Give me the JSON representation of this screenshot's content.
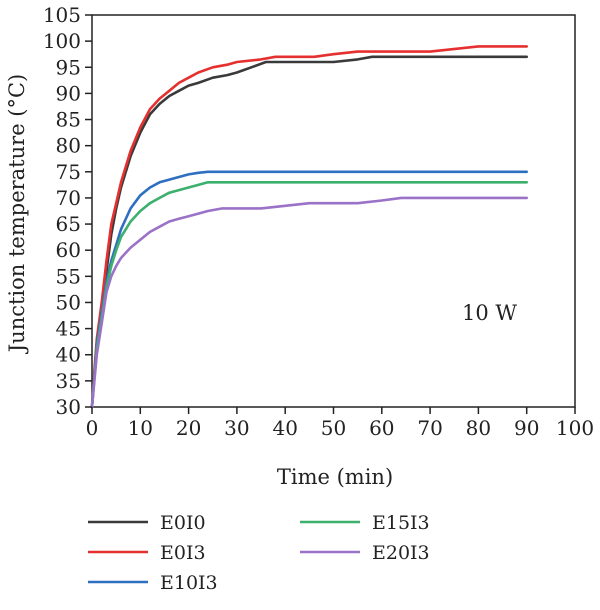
{
  "chart_data": {
    "type": "line",
    "xlabel": "Time (min)",
    "ylabel": "Junction temperature (°C)",
    "xlim": [
      0,
      100
    ],
    "ylim": [
      30,
      105
    ],
    "xticks": [
      0,
      10,
      20,
      30,
      40,
      50,
      60,
      70,
      80,
      90,
      100
    ],
    "yticks": [
      30,
      35,
      40,
      45,
      50,
      55,
      60,
      65,
      70,
      75,
      80,
      85,
      90,
      95,
      100,
      105
    ],
    "grid": false,
    "legend_position": "bottom",
    "annotation": "10 W",
    "series": [
      {
        "name": "E0I0",
        "color": "#3a3a3a",
        "points": [
          [
            0,
            30
          ],
          [
            0.5,
            36
          ],
          [
            1,
            42
          ],
          [
            2,
            48
          ],
          [
            3,
            56
          ],
          [
            4,
            63
          ],
          [
            5,
            68
          ],
          [
            6,
            72
          ],
          [
            8,
            78
          ],
          [
            10,
            82.5
          ],
          [
            12,
            86
          ],
          [
            14,
            88
          ],
          [
            16,
            89.5
          ],
          [
            18,
            90.5
          ],
          [
            20,
            91.5
          ],
          [
            22,
            92
          ],
          [
            25,
            93
          ],
          [
            28,
            93.5
          ],
          [
            30,
            94
          ],
          [
            33,
            95
          ],
          [
            36,
            96
          ],
          [
            40,
            96
          ],
          [
            45,
            96
          ],
          [
            50,
            96
          ],
          [
            55,
            96.5
          ],
          [
            58,
            97
          ],
          [
            65,
            97
          ],
          [
            90,
            97
          ]
        ]
      },
      {
        "name": "E0I3",
        "color": "#e53030",
        "points": [
          [
            0,
            30
          ],
          [
            0.5,
            37
          ],
          [
            1,
            43
          ],
          [
            2,
            50
          ],
          [
            3,
            58
          ],
          [
            4,
            65
          ],
          [
            5,
            69
          ],
          [
            6,
            73
          ],
          [
            8,
            79
          ],
          [
            10,
            83.5
          ],
          [
            12,
            87
          ],
          [
            14,
            89
          ],
          [
            16,
            90.5
          ],
          [
            18,
            92
          ],
          [
            20,
            93
          ],
          [
            22,
            94
          ],
          [
            25,
            95
          ],
          [
            28,
            95.5
          ],
          [
            30,
            96
          ],
          [
            35,
            96.5
          ],
          [
            38,
            97
          ],
          [
            46,
            97
          ],
          [
            50,
            97.5
          ],
          [
            55,
            98
          ],
          [
            70,
            98
          ],
          [
            80,
            99
          ],
          [
            90,
            99
          ]
        ]
      },
      {
        "name": "E10I3",
        "color": "#2f6fc0",
        "points": [
          [
            0,
            30
          ],
          [
            0.5,
            36
          ],
          [
            1,
            42
          ],
          [
            2,
            48
          ],
          [
            3,
            54
          ],
          [
            4,
            58
          ],
          [
            5,
            61
          ],
          [
            6,
            64
          ],
          [
            8,
            68
          ],
          [
            10,
            70.5
          ],
          [
            12,
            72
          ],
          [
            14,
            73
          ],
          [
            16,
            73.5
          ],
          [
            18,
            74
          ],
          [
            20,
            74.5
          ],
          [
            22,
            74.8
          ],
          [
            24,
            75
          ],
          [
            90,
            75
          ]
        ]
      },
      {
        "name": "E15I3",
        "color": "#3cb06c",
        "points": [
          [
            0,
            30
          ],
          [
            0.5,
            35.5
          ],
          [
            1,
            41
          ],
          [
            2,
            47
          ],
          [
            3,
            53
          ],
          [
            4,
            57
          ],
          [
            5,
            60
          ],
          [
            6,
            62.5
          ],
          [
            8,
            65.5
          ],
          [
            10,
            67.5
          ],
          [
            12,
            69
          ],
          [
            14,
            70
          ],
          [
            16,
            71
          ],
          [
            18,
            71.5
          ],
          [
            20,
            72
          ],
          [
            22,
            72.5
          ],
          [
            24,
            73
          ],
          [
            90,
            73
          ]
        ]
      },
      {
        "name": "E20I3",
        "color": "#9a72c8",
        "points": [
          [
            0,
            30
          ],
          [
            0.5,
            35
          ],
          [
            1,
            40
          ],
          [
            2,
            46
          ],
          [
            3,
            52
          ],
          [
            4,
            55
          ],
          [
            5,
            57
          ],
          [
            6,
            58.5
          ],
          [
            8,
            60.5
          ],
          [
            10,
            62
          ],
          [
            12,
            63.5
          ],
          [
            14,
            64.5
          ],
          [
            16,
            65.5
          ],
          [
            18,
            66
          ],
          [
            20,
            66.5
          ],
          [
            22,
            67
          ],
          [
            24,
            67.5
          ],
          [
            27,
            68
          ],
          [
            30,
            68
          ],
          [
            35,
            68
          ],
          [
            40,
            68.5
          ],
          [
            45,
            69
          ],
          [
            50,
            69
          ],
          [
            55,
            69
          ],
          [
            60,
            69.5
          ],
          [
            64,
            70
          ],
          [
            90,
            70
          ]
        ]
      }
    ]
  }
}
